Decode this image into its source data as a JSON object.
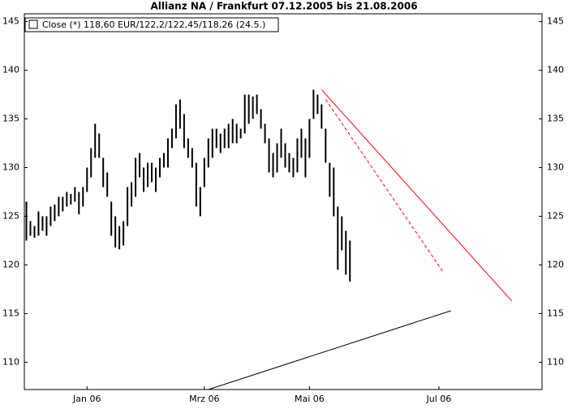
{
  "chart_data": {
    "type": "hilo",
    "title": "Allianz NA / Frankfurt 07.12.2005 bis 21.08.2006",
    "categories": [
      null,
      null,
      null,
      null,
      null,
      null,
      null,
      null,
      null,
      null,
      null,
      null,
      null,
      null,
      null,
      "Jan 06",
      null,
      null,
      null,
      null,
      null,
      null,
      null,
      null,
      null,
      null,
      null,
      null,
      null,
      null,
      null,
      null,
      null,
      null,
      null,
      null,
      null,
      null,
      null,
      null,
      null,
      null,
      null,
      null,
      "Mrz 06",
      null,
      null,
      null,
      null,
      null,
      null,
      null,
      null,
      null,
      null,
      null,
      null,
      null,
      null,
      null,
      null,
      null,
      null,
      null,
      null,
      null,
      null,
      null,
      null,
      null,
      "Mai 06",
      null,
      null,
      null,
      null,
      null,
      null,
      null,
      null,
      null,
      null,
      null,
      null,
      null,
      null,
      null,
      null,
      null,
      null,
      null,
      null,
      null,
      null,
      null,
      null,
      null,
      null,
      null,
      null,
      null,
      null,
      null,
      "Jul 06",
      null,
      null,
      null,
      null,
      null,
      null,
      null,
      null,
      null,
      null,
      null,
      null,
      null,
      null,
      null,
      null,
      null,
      null,
      null,
      null,
      null,
      null,
      null,
      null,
      null
    ],
    "series": [
      {
        "name": "Close (*) 118,60 EUR/122,2/122,45/118,26 (24.5.)",
        "color": "#000000",
        "high": [
          126.5,
          124.5,
          124,
          125.5,
          125,
          125,
          126,
          126.2,
          127,
          127,
          127.5,
          127.3,
          128,
          127.5,
          128,
          130,
          132,
          134.5,
          133.5,
          131,
          129.5,
          126.5,
          125,
          124,
          124.5,
          128,
          128.5,
          131,
          131.5,
          130,
          130.5,
          130.5,
          130,
          131,
          131.5,
          133,
          134,
          136.5,
          137,
          135.5,
          133,
          132,
          130.5,
          128,
          131,
          133,
          134,
          134,
          133.5,
          134,
          134.5,
          135,
          134.5,
          134,
          137.5,
          137.5,
          137.3,
          137.5,
          136,
          134.5,
          133,
          131.5,
          132.5,
          134,
          132.5,
          131.5,
          131,
          133,
          134,
          133,
          135,
          138,
          137.5,
          136.5,
          134,
          130.5,
          130,
          126,
          125,
          123.5,
          122.5
        ],
        "low": [
          122.5,
          123,
          122.8,
          123,
          123.5,
          123,
          124,
          124.5,
          125,
          125.5,
          126,
          126.2,
          126.5,
          125.2,
          126,
          127.5,
          129,
          131,
          131,
          128,
          127,
          123,
          121.8,
          121.6,
          122,
          124,
          126,
          127,
          129,
          127.5,
          128,
          128.5,
          127.5,
          129,
          130,
          130,
          132,
          133,
          134,
          132,
          131,
          130,
          126,
          125,
          128,
          130,
          131,
          132,
          131.5,
          132,
          132,
          132.5,
          132.5,
          133,
          133.5,
          134.5,
          135,
          135.5,
          134,
          132.5,
          129.5,
          129,
          129.5,
          131,
          130,
          129.5,
          129,
          129.5,
          131,
          129,
          131,
          135,
          135.5,
          134,
          130.5,
          127,
          125,
          119.5,
          121.5,
          119,
          118.3
        ]
      }
    ],
    "trend_lines": [
      {
        "color": "#ff0000",
        "dashed": false,
        "x": [
          73,
          120
        ],
        "values": [
          138,
          116.3
        ]
      },
      {
        "color": "#ff0000",
        "dashed": true,
        "x": [
          74,
          103
        ],
        "values": [
          137,
          119.3
        ]
      },
      {
        "color": "#000000",
        "dashed": false,
        "x": [
          45,
          105
        ],
        "values": [
          107.2,
          115.3
        ]
      }
    ],
    "ylim": [
      107.2,
      145.8
    ],
    "yticks": [
      110,
      115,
      120,
      125,
      130,
      135,
      140,
      145
    ]
  }
}
